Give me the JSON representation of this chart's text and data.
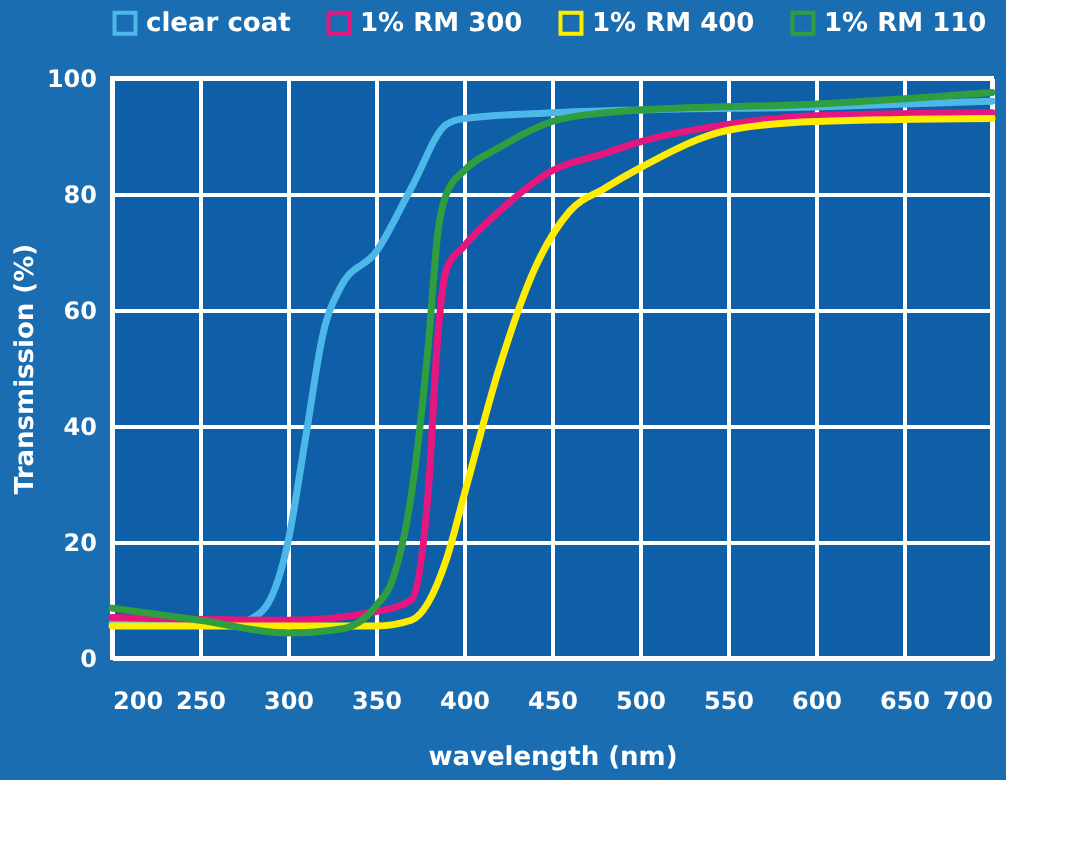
{
  "chart_data": {
    "type": "line",
    "xlabel": "wavelength (nm)",
    "ylabel": "Transmission (%)",
    "xlim": [
      200,
      700
    ],
    "xticks": [
      200,
      250,
      300,
      350,
      400,
      450,
      500,
      550,
      600,
      650,
      700
    ],
    "ylim": [
      0,
      100
    ],
    "yticks": [
      0,
      20,
      40,
      60,
      80,
      100
    ],
    "grid": true,
    "legend": "top",
    "marker": "none",
    "line_style": "solid",
    "series": [
      {
        "name": "clear coat",
        "color": "#4db8e8",
        "x": [
          200,
          250,
          270,
          285,
          300,
          310,
          320,
          330,
          350,
          370,
          390,
          400,
          450,
          500,
          600,
          700
        ],
        "values": [
          6,
          6,
          6,
          8,
          20,
          38,
          56,
          64,
          70,
          81,
          92,
          93,
          94,
          94.5,
          95,
          96
        ]
      },
      {
        "name": "1% RM 300",
        "color": "#e5177e",
        "x": [
          200,
          300,
          350,
          370,
          380,
          385,
          390,
          400,
          420,
          450,
          480,
          500,
          550,
          600,
          700
        ],
        "values": [
          7,
          6.5,
          8,
          10,
          30,
          55,
          67,
          71,
          77,
          84,
          87,
          89,
          92,
          93.5,
          94
        ]
      },
      {
        "name": "1% RM 400",
        "color": "#ffed00",
        "x": [
          200,
          350,
          370,
          390,
          400,
          420,
          440,
          460,
          480,
          500,
          550,
          600,
          700
        ],
        "values": [
          5.5,
          5.5,
          6.5,
          17,
          28,
          50,
          67,
          77,
          81,
          84.5,
          91,
          92.5,
          93
        ]
      },
      {
        "name": "1% RM 110",
        "color": "#2e9e3e",
        "x": [
          200,
          250,
          300,
          330,
          350,
          360,
          370,
          380,
          385,
          390,
          400,
          420,
          450,
          480,
          500,
          600,
          700
        ],
        "values": [
          8.6,
          6.5,
          4.3,
          5,
          9,
          14,
          28,
          55,
          73,
          80,
          84,
          88,
          92.5,
          94,
          94.5,
          95.5,
          97.5
        ]
      }
    ]
  }
}
